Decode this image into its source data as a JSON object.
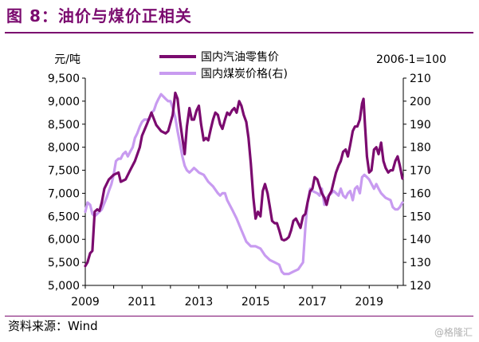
{
  "figure": {
    "title": "图 8：油价与煤价正相关",
    "source": "资料来源：Wind",
    "watermark": "@格隆汇"
  },
  "chart_data": {
    "type": "line",
    "title": "",
    "left_unit": "元/吨",
    "right_unit": "2006-1=100",
    "x_ticks": [
      "2009",
      "2011",
      "2013",
      "2015",
      "2017",
      "2019"
    ],
    "xlim": [
      2009,
      2020.2
    ],
    "y_left": {
      "ylim": [
        5000,
        9500
      ],
      "ticks": [
        "5,000",
        "5,500",
        "6,000",
        "6,500",
        "7,000",
        "7,500",
        "8,000",
        "8,500",
        "9,000",
        "9,500"
      ]
    },
    "y_right": {
      "ylim": [
        120,
        210
      ],
      "ticks": [
        "120",
        "130",
        "140",
        "150",
        "160",
        "170",
        "180",
        "190",
        "200",
        "210"
      ]
    },
    "legend_position": "top-center",
    "grid": false,
    "series": [
      {
        "name": "国内汽油零售价",
        "axis": "left",
        "color": "#7b0b6f",
        "points": [
          [
            2009.0,
            5420
          ],
          [
            2009.08,
            5500
          ],
          [
            2009.17,
            5700
          ],
          [
            2009.25,
            5750
          ],
          [
            2009.33,
            6600
          ],
          [
            2009.42,
            6650
          ],
          [
            2009.5,
            6620
          ],
          [
            2009.58,
            6800
          ],
          [
            2009.67,
            7100
          ],
          [
            2009.83,
            7300
          ],
          [
            2010.0,
            7400
          ],
          [
            2010.17,
            7450
          ],
          [
            2010.25,
            7250
          ],
          [
            2010.42,
            7300
          ],
          [
            2010.58,
            7500
          ],
          [
            2010.75,
            7700
          ],
          [
            2010.92,
            8000
          ],
          [
            2011.0,
            8250
          ],
          [
            2011.17,
            8500
          ],
          [
            2011.33,
            8750
          ],
          [
            2011.5,
            8480
          ],
          [
            2011.67,
            8350
          ],
          [
            2011.83,
            8300
          ],
          [
            2011.92,
            8350
          ],
          [
            2012.08,
            8700
          ],
          [
            2012.17,
            9180
          ],
          [
            2012.25,
            9050
          ],
          [
            2012.33,
            8600
          ],
          [
            2012.42,
            8200
          ],
          [
            2012.5,
            7850
          ],
          [
            2012.58,
            8450
          ],
          [
            2012.67,
            8850
          ],
          [
            2012.75,
            8600
          ],
          [
            2012.83,
            8600
          ],
          [
            2012.92,
            8800
          ],
          [
            2013.0,
            8900
          ],
          [
            2013.08,
            8500
          ],
          [
            2013.17,
            8150
          ],
          [
            2013.25,
            8200
          ],
          [
            2013.33,
            8150
          ],
          [
            2013.42,
            8400
          ],
          [
            2013.5,
            8600
          ],
          [
            2013.58,
            8750
          ],
          [
            2013.67,
            8700
          ],
          [
            2013.75,
            8500
          ],
          [
            2013.83,
            8400
          ],
          [
            2013.92,
            8600
          ],
          [
            2014.0,
            8750
          ],
          [
            2014.08,
            8700
          ],
          [
            2014.17,
            8800
          ],
          [
            2014.25,
            8850
          ],
          [
            2014.33,
            8750
          ],
          [
            2014.42,
            9000
          ],
          [
            2014.5,
            8900
          ],
          [
            2014.58,
            8700
          ],
          [
            2014.67,
            8550
          ],
          [
            2014.75,
            8200
          ],
          [
            2014.83,
            7650
          ],
          [
            2014.92,
            6900
          ],
          [
            2015.0,
            6450
          ],
          [
            2015.08,
            6600
          ],
          [
            2015.17,
            6500
          ],
          [
            2015.25,
            7050
          ],
          [
            2015.33,
            7200
          ],
          [
            2015.42,
            7000
          ],
          [
            2015.5,
            6700
          ],
          [
            2015.58,
            6400
          ],
          [
            2015.67,
            6350
          ],
          [
            2015.75,
            6350
          ],
          [
            2015.83,
            6200
          ],
          [
            2015.92,
            6000
          ],
          [
            2016.0,
            5980
          ],
          [
            2016.08,
            6000
          ],
          [
            2016.17,
            6050
          ],
          [
            2016.25,
            6200
          ],
          [
            2016.33,
            6400
          ],
          [
            2016.42,
            6450
          ],
          [
            2016.5,
            6350
          ],
          [
            2016.58,
            6250
          ],
          [
            2016.67,
            6500
          ],
          [
            2016.75,
            6550
          ],
          [
            2016.83,
            6800
          ],
          [
            2016.92,
            7050
          ],
          [
            2017.0,
            7100
          ],
          [
            2017.08,
            7350
          ],
          [
            2017.17,
            7300
          ],
          [
            2017.25,
            7150
          ],
          [
            2017.33,
            7000
          ],
          [
            2017.42,
            6900
          ],
          [
            2017.5,
            6750
          ],
          [
            2017.58,
            6950
          ],
          [
            2017.67,
            7050
          ],
          [
            2017.75,
            7250
          ],
          [
            2017.83,
            7450
          ],
          [
            2017.92,
            7600
          ],
          [
            2018.0,
            7700
          ],
          [
            2018.08,
            7900
          ],
          [
            2018.17,
            7950
          ],
          [
            2018.25,
            7800
          ],
          [
            2018.33,
            8050
          ],
          [
            2018.42,
            8350
          ],
          [
            2018.5,
            8450
          ],
          [
            2018.58,
            8450
          ],
          [
            2018.67,
            8600
          ],
          [
            2018.75,
            8950
          ],
          [
            2018.8,
            9050
          ],
          [
            2018.85,
            8500
          ],
          [
            2018.92,
            7800
          ],
          [
            2019.0,
            7450
          ],
          [
            2019.08,
            7500
          ],
          [
            2019.17,
            7950
          ],
          [
            2019.25,
            8000
          ],
          [
            2019.33,
            7850
          ],
          [
            2019.42,
            8100
          ],
          [
            2019.5,
            7700
          ],
          [
            2019.58,
            7550
          ],
          [
            2019.67,
            7450
          ],
          [
            2019.75,
            7500
          ],
          [
            2019.83,
            7500
          ],
          [
            2019.92,
            7700
          ],
          [
            2020.0,
            7800
          ],
          [
            2020.08,
            7600
          ],
          [
            2020.17,
            7320
          ]
        ]
      },
      {
        "name": "国内煤炭价格(右)",
        "axis": "right",
        "color": "#c89bf0",
        "points": [
          [
            2009.0,
            152
          ],
          [
            2009.08,
            156
          ],
          [
            2009.17,
            155
          ],
          [
            2009.25,
            151
          ],
          [
            2009.33,
            150
          ],
          [
            2009.5,
            152
          ],
          [
            2009.58,
            153
          ],
          [
            2009.75,
            158
          ],
          [
            2009.83,
            161
          ],
          [
            2009.92,
            164
          ],
          [
            2010.0,
            168
          ],
          [
            2010.08,
            174
          ],
          [
            2010.17,
            175
          ],
          [
            2010.25,
            175
          ],
          [
            2010.33,
            177
          ],
          [
            2010.42,
            178
          ],
          [
            2010.5,
            176
          ],
          [
            2010.58,
            178
          ],
          [
            2010.67,
            180
          ],
          [
            2010.75,
            184
          ],
          [
            2010.83,
            186
          ],
          [
            2010.92,
            189
          ],
          [
            2011.0,
            191
          ],
          [
            2011.08,
            192
          ],
          [
            2011.17,
            192
          ],
          [
            2011.25,
            192
          ],
          [
            2011.33,
            195
          ],
          [
            2011.42,
            196
          ],
          [
            2011.5,
            199
          ],
          [
            2011.58,
            201
          ],
          [
            2011.67,
            203
          ],
          [
            2011.75,
            202
          ],
          [
            2011.83,
            201
          ],
          [
            2011.92,
            200
          ],
          [
            2012.0,
            200
          ],
          [
            2012.08,
            197
          ],
          [
            2012.17,
            193
          ],
          [
            2012.25,
            187
          ],
          [
            2012.33,
            182
          ],
          [
            2012.42,
            176
          ],
          [
            2012.5,
            172
          ],
          [
            2012.58,
            170
          ],
          [
            2012.67,
            169
          ],
          [
            2012.75,
            170
          ],
          [
            2012.83,
            171
          ],
          [
            2012.92,
            170
          ],
          [
            2013.0,
            169
          ],
          [
            2013.17,
            168
          ],
          [
            2013.33,
            165
          ],
          [
            2013.5,
            163
          ],
          [
            2013.67,
            160
          ],
          [
            2013.75,
            159
          ],
          [
            2013.83,
            160
          ],
          [
            2013.92,
            160
          ],
          [
            2014.0,
            157
          ],
          [
            2014.17,
            153
          ],
          [
            2014.33,
            149
          ],
          [
            2014.5,
            144
          ],
          [
            2014.67,
            139
          ],
          [
            2014.83,
            137
          ],
          [
            2015.0,
            137
          ],
          [
            2015.17,
            136
          ],
          [
            2015.33,
            133
          ],
          [
            2015.5,
            131
          ],
          [
            2015.67,
            130
          ],
          [
            2015.83,
            129
          ],
          [
            2015.92,
            126
          ],
          [
            2016.0,
            125
          ],
          [
            2016.17,
            125
          ],
          [
            2016.33,
            126
          ],
          [
            2016.5,
            127
          ],
          [
            2016.67,
            130
          ],
          [
            2016.75,
            145
          ],
          [
            2016.83,
            156
          ],
          [
            2016.92,
            162
          ],
          [
            2017.0,
            161
          ],
          [
            2017.17,
            160
          ],
          [
            2017.25,
            159
          ],
          [
            2017.33,
            162
          ],
          [
            2017.42,
            155
          ],
          [
            2017.5,
            158
          ],
          [
            2017.67,
            160
          ],
          [
            2017.75,
            161
          ],
          [
            2017.92,
            159
          ],
          [
            2018.0,
            162
          ],
          [
            2018.08,
            159
          ],
          [
            2018.17,
            158
          ],
          [
            2018.25,
            160
          ],
          [
            2018.33,
            161
          ],
          [
            2018.42,
            157
          ],
          [
            2018.5,
            162
          ],
          [
            2018.58,
            163
          ],
          [
            2018.67,
            160
          ],
          [
            2018.75,
            167
          ],
          [
            2018.83,
            168
          ],
          [
            2018.92,
            167
          ],
          [
            2019.0,
            166
          ],
          [
            2019.17,
            162
          ],
          [
            2019.25,
            164
          ],
          [
            2019.33,
            162
          ],
          [
            2019.42,
            160
          ],
          [
            2019.58,
            158
          ],
          [
            2019.75,
            157
          ],
          [
            2019.83,
            154
          ],
          [
            2019.92,
            153
          ],
          [
            2020.0,
            153
          ],
          [
            2020.08,
            154
          ],
          [
            2020.17,
            156
          ]
        ]
      }
    ]
  }
}
